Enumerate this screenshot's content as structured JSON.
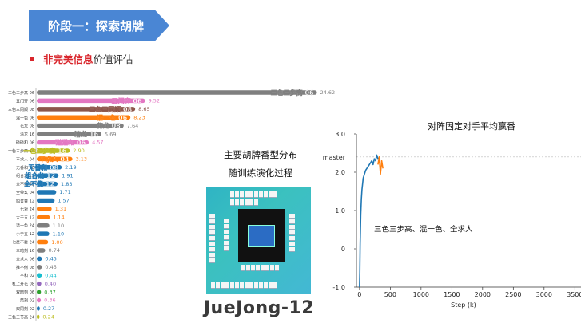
{
  "header": {
    "title": "阶段一：探索胡牌"
  },
  "bullet": {
    "highlight": "非完美信息",
    "rest": "价值评估"
  },
  "middle": {
    "title_line1": "主要胡牌番型分布",
    "title_line2": "随训练演化过程",
    "game_logo": "JueJong-12"
  },
  "colors": {
    "header_bg": "#4a86d4",
    "accent_red": "#d9262c",
    "line_blue": "#1f77b4",
    "line_orange": "#ff7f0e"
  },
  "chart_data": [
    {
      "type": "bar",
      "orientation": "horizontal",
      "categories": [
        "三色三步高 06",
        "五门齐 06",
        "三色三同顺 08",
        "混一色 06",
        "花龙 08",
        "清龙 16",
        "碰碰和 06",
        "一色三步高 16",
        "不求人 04",
        "无番和 08",
        "组合龙 12",
        "全不靠 12",
        "全带幺 04",
        "组合番 12",
        "七对 24",
        "大于五 12",
        "清一色 24",
        "小于五 12",
        "七星不靠 24",
        "三暗刻 16",
        "全求人 06",
        "推不倒 08",
        "平和 02",
        "杠上开花 08",
        "双暗刻 06",
        "箭刻 02",
        "双同刻 02",
        "三色三节高 24"
      ],
      "values": [
        24.62,
        9.52,
        8.65,
        8.23,
        7.64,
        5.69,
        4.57,
        2.9,
        3.13,
        2.19,
        1.91,
        1.83,
        1.71,
        1.57,
        1.31,
        1.14,
        1.1,
        1.1,
        1.0,
        0.74,
        0.45,
        0.45,
        0.44,
        0.4,
        0.37,
        0.36,
        0.27,
        0.24
      ],
      "value_labels": [
        "24.62",
        "9.52",
        "8.65",
        "8.23",
        "7.64",
        "5.69",
        "4.57",
        "2.90",
        "3.13",
        "2.19",
        "1.91",
        "1.83",
        "1.71",
        "1.57",
        "1.31",
        "1.14",
        "1.10",
        "1.10",
        "1.00",
        "0.74",
        "0.45",
        "0.45",
        "0.44",
        "0.40",
        "0.37",
        "0.36",
        "0.27",
        "0.24"
      ],
      "colors": [
        "#7f7f7f",
        "#e377c2",
        "#8c564b",
        "#ff7f0e",
        "#7f7f7f",
        "#7f7f7f",
        "#e377c2",
        "#bcbd22",
        "#ff7f0e",
        "#1f77b4",
        "#1f77b4",
        "#1f77b4",
        "#1f77b4",
        "#1f77b4",
        "#ff7f0e",
        "#ff7f0e",
        "#7f7f7f",
        "#1f77b4",
        "#ff7f0e",
        "#7f7f7f",
        "#1f77b4",
        "#7f7f7f",
        "#17becf",
        "#9467bd",
        "#2ca02c",
        "#e377c2",
        "#1f77b4",
        "#bcbd22"
      ],
      "inline_labels": [
        {
          "index": 0,
          "text": "三色三步高 06"
        },
        {
          "index": 1,
          "text": "五门齐 06"
        },
        {
          "index": 2,
          "text": "三色三同顺 08"
        },
        {
          "index": 3,
          "text": "混一色 06"
        },
        {
          "index": 4,
          "text": "花龙 08"
        },
        {
          "index": 5,
          "text": "清龙 16"
        },
        {
          "index": 6,
          "text": "碰碰和 06"
        },
        {
          "index": 7,
          "text": "一色三步高 16"
        },
        {
          "index": 8,
          "text": "不求人 04"
        },
        {
          "index": 9,
          "text": "无番和 08"
        },
        {
          "index": 10,
          "text": "组合龙 12"
        },
        {
          "index": 11,
          "text": "全不靠 12"
        }
      ],
      "xlim": [
        0,
        25
      ]
    },
    {
      "type": "line",
      "title": "对阵固定对手平均赢番",
      "xlabel": "Step (k)",
      "ylabel": "",
      "xlim": [
        -50,
        3600
      ],
      "ylim": [
        -1.0,
        3.0
      ],
      "x_ticks": [
        0,
        500,
        1000,
        1500,
        2000,
        2500,
        3000,
        3500
      ],
      "y_ticks": [
        -1.0,
        0,
        1.0,
        2.0,
        3.0
      ],
      "y_tick_labels": [
        "-1.0",
        "0",
        "1.0",
        "2.0",
        "3.0"
      ],
      "reference_line": {
        "label": "master",
        "y": 2.4
      },
      "annotation": "三色三步高、混一色、全求人",
      "series": [
        {
          "color": "#1f77b4",
          "x": [
            0,
            5,
            10,
            20,
            30,
            40,
            50,
            60,
            80,
            100,
            120,
            140,
            160,
            180,
            200,
            220,
            240,
            260,
            280,
            300
          ],
          "y": [
            -1.0,
            -0.6,
            0.1,
            0.9,
            1.3,
            1.55,
            1.7,
            1.85,
            1.95,
            2.05,
            2.1,
            2.15,
            2.2,
            2.25,
            2.3,
            2.2,
            2.35,
            2.3,
            2.45,
            2.35
          ]
        },
        {
          "color": "#ff7f0e",
          "x": [
            300,
            320,
            340,
            360,
            380
          ],
          "y": [
            2.2,
            2.4,
            1.95,
            2.3,
            2.1
          ]
        }
      ]
    }
  ]
}
